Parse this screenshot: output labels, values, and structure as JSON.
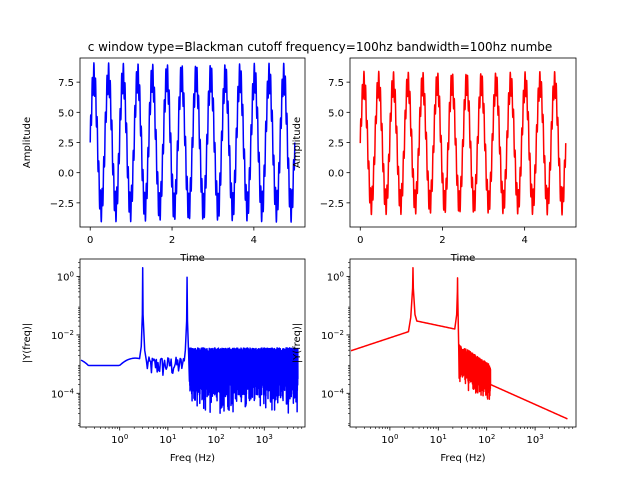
{
  "figure": {
    "title": "c window type=Blackman cutoff frequency=100hz bandwidth=100hz numbe"
  },
  "colors": {
    "left": "#0000ff",
    "right": "#ff0000"
  },
  "chart_data": [
    {
      "type": "line",
      "id": "time_left",
      "color": "#0000ff",
      "xlabel": "Time",
      "ylabel": "Amplitude",
      "xlim": [
        -0.25,
        5.25
      ],
      "ylim": [
        -4.5,
        9.5
      ],
      "xticks": [
        0,
        2,
        4
      ],
      "xtick_labels": [
        "0",
        "2",
        "4"
      ],
      "yticks": [
        -2.5,
        0.0,
        2.5,
        5.0,
        7.5
      ],
      "ytick_labels": [
        "−2.5",
        "0.0",
        "2.5",
        "5.0",
        "7.5"
      ],
      "signal": {
        "duration": 5,
        "cycles": 14,
        "max": 9.1,
        "min": -4.1,
        "fast_ripple_amplitude": 1.2
      }
    },
    {
      "type": "line",
      "id": "time_right",
      "color": "#ff0000",
      "xlabel": "Time",
      "ylabel": "Amplitude",
      "xlim": [
        -0.25,
        5.25
      ],
      "ylim": [
        -4.5,
        9.5
      ],
      "xticks": [
        0,
        2,
        4
      ],
      "xtick_labels": [
        "0",
        "2",
        "4"
      ],
      "yticks": [
        -2.5,
        0.0,
        2.5,
        5.0,
        7.5
      ],
      "ytick_labels": [
        "−2.5",
        "0.0",
        "2.5",
        "5.0",
        "7.5"
      ],
      "signal": {
        "duration": 5,
        "cycles": 14,
        "max": 8.4,
        "min": -3.5,
        "fast_ripple_amplitude": 1.0
      }
    },
    {
      "type": "line",
      "id": "freq_left",
      "color": "#0000ff",
      "xscale": "log",
      "yscale": "log",
      "xlabel": "Freq (Hz)",
      "ylabel": "|Y(freq)|",
      "xlim": [
        0.15,
        7000
      ],
      "ylim": [
        7e-06,
        4
      ],
      "xticks": [
        1,
        10,
        100,
        1000
      ],
      "xtick_labels": [
        [
          "10",
          "0"
        ],
        [
          "10",
          "1"
        ],
        [
          "10",
          "2"
        ],
        [
          "10",
          "3"
        ]
      ],
      "yticks": [
        0.0001,
        0.01,
        1
      ],
      "ytick_labels": [
        [
          "10",
          "−4"
        ],
        [
          "10",
          "−2"
        ],
        [
          "10",
          "0"
        ]
      ],
      "peaks": [
        {
          "freq": 3,
          "value": 2.0
        },
        {
          "freq": 25,
          "value": 0.95
        }
      ],
      "noise_floor": {
        "upper": 0.003,
        "lower": 2e-05
      }
    },
    {
      "type": "line",
      "id": "freq_right",
      "color": "#ff0000",
      "xscale": "log",
      "yscale": "log",
      "xlabel": "Freq (Hz)",
      "ylabel": "|Y(freq)|",
      "xlim": [
        0.15,
        7000
      ],
      "ylim": [
        7e-06,
        4
      ],
      "xticks": [
        1,
        10,
        100,
        1000
      ],
      "xtick_labels": [
        [
          "10",
          "0"
        ],
        [
          "10",
          "1"
        ],
        [
          "10",
          "2"
        ],
        [
          "10",
          "3"
        ]
      ],
      "yticks": [
        0.0001,
        0.01,
        1
      ],
      "ytick_labels": [
        [
          "10",
          "−4"
        ],
        [
          "10",
          "−2"
        ],
        [
          "10",
          "0"
        ]
      ],
      "peaks": [
        {
          "freq": 3,
          "value": 2.0
        },
        {
          "freq": 25,
          "value": 0.9
        }
      ],
      "cutoff_hz": 100,
      "tail": {
        "start_freq": 120,
        "start_value": 0.0002,
        "end_freq": 4800,
        "end_value": 1.3e-05
      }
    }
  ]
}
